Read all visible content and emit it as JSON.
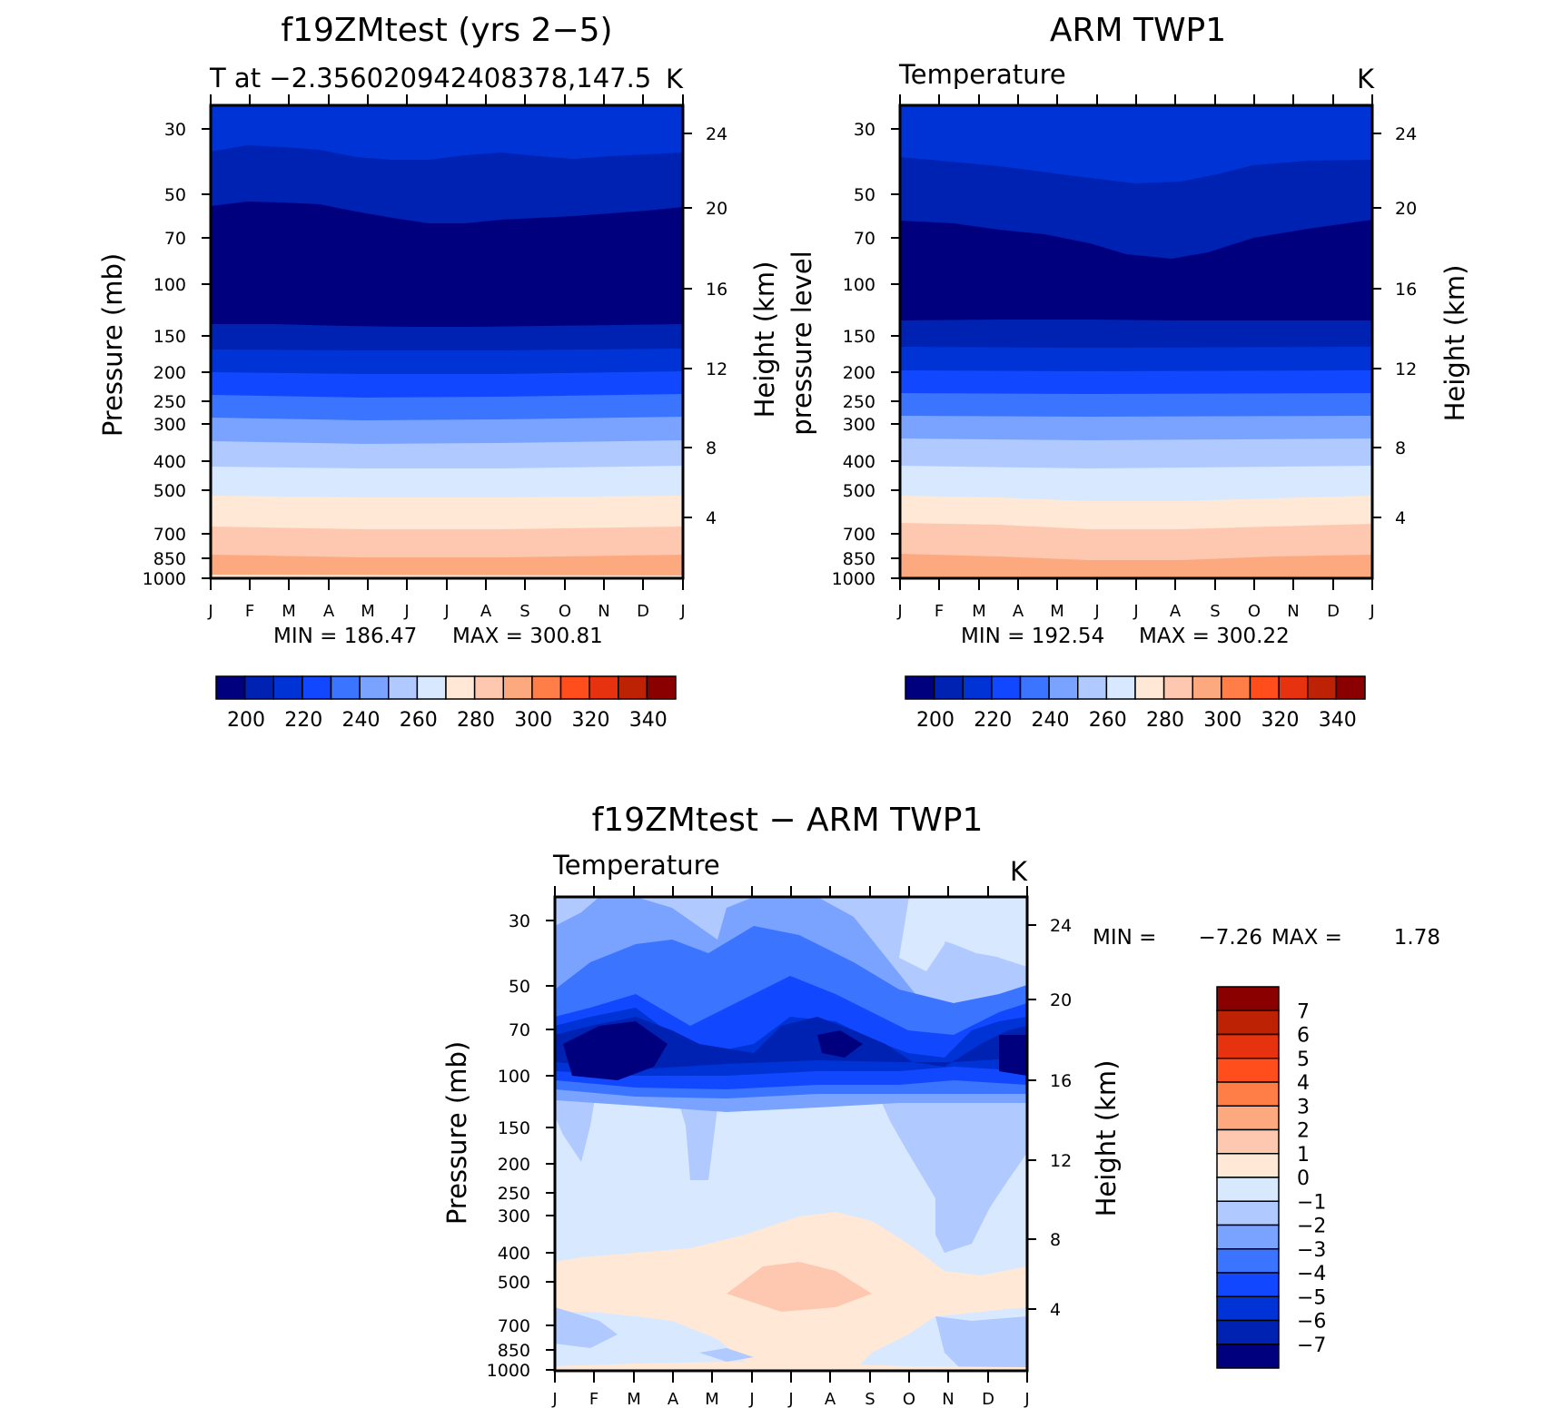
{
  "months": [
    "J",
    "F",
    "M",
    "A",
    "M",
    "J",
    "J",
    "A",
    "S",
    "O",
    "N",
    "D",
    "J"
  ],
  "pressure_ticks": [
    30,
    50,
    70,
    100,
    150,
    200,
    250,
    300,
    400,
    500,
    700,
    850,
    1000
  ],
  "colors": {
    "abs": [
      "#00007f",
      "#0022b2",
      "#0033d6",
      "#1148ff",
      "#3a74ff",
      "#7aa3ff",
      "#b0c9ff",
      "#d8e9ff",
      "#ffe9d6",
      "#fec8b0",
      "#fda97f",
      "#ff7e48",
      "#ff4d1c",
      "#e73210",
      "#bd2204",
      "#8a0000"
    ],
    "diff": [
      "#00007f",
      "#0022b2",
      "#0033d6",
      "#1148ff",
      "#3a74ff",
      "#7aa3ff",
      "#b0c9ff",
      "#d8e9ff",
      "#ffe9d6",
      "#fec8b0",
      "#fda97f",
      "#ff7e48",
      "#ff4d1c",
      "#e73210",
      "#bd2204",
      "#8a0000"
    ]
  },
  "chart_data": [
    {
      "type": "heatmap",
      "title": "f19ZMtest (yrs 2−5)",
      "subtitle_left": "T at −2.356020942408378,147.5",
      "units": "K",
      "ylabel": "Pressure (mb)",
      "ylabel_right": "Height (km)",
      "x": [
        "J",
        "F",
        "M",
        "A",
        "M",
        "J",
        "J",
        "A",
        "S",
        "O",
        "N",
        "D",
        "J"
      ],
      "y_pressure": [
        30,
        50,
        70,
        100,
        150,
        200,
        250,
        300,
        400,
        500,
        700,
        850,
        1000
      ],
      "height_ticks": [
        24,
        20,
        16,
        12,
        8,
        4
      ],
      "min_label": "MIN = 186.47",
      "max_label": "MAX = 300.81",
      "min": 186.47,
      "max": 300.81,
      "colorbar_labels": [
        "200",
        "220",
        "240",
        "260",
        "280",
        "300",
        "320",
        "340"
      ]
    },
    {
      "type": "heatmap",
      "title": "ARM TWP1",
      "subtitle_left": "Temperature",
      "units": "K",
      "ylabel": "pressure level",
      "ylabel_right": "Height (km)",
      "x": [
        "J",
        "F",
        "M",
        "A",
        "M",
        "J",
        "J",
        "A",
        "S",
        "O",
        "N",
        "D",
        "J"
      ],
      "y_pressure": [
        30,
        50,
        70,
        100,
        150,
        200,
        250,
        300,
        400,
        500,
        700,
        850,
        1000
      ],
      "height_ticks": [
        24,
        20,
        16,
        12,
        8,
        4
      ],
      "min_label": "MIN = 192.54",
      "max_label": "MAX = 300.22",
      "min": 192.54,
      "max": 300.22,
      "colorbar_labels": [
        "200",
        "220",
        "240",
        "260",
        "280",
        "300",
        "320",
        "340"
      ]
    },
    {
      "type": "heatmap",
      "title": "f19ZMtest − ARM TWP1",
      "subtitle_left": "Temperature",
      "units": "K",
      "ylabel": "Pressure (mb)",
      "ylabel_right": "Height (km)",
      "x": [
        "J",
        "F",
        "M",
        "A",
        "M",
        "J",
        "J",
        "A",
        "S",
        "O",
        "N",
        "D",
        "J"
      ],
      "y_pressure": [
        30,
        50,
        70,
        100,
        150,
        200,
        250,
        300,
        400,
        500,
        700,
        850,
        1000
      ],
      "height_ticks": [
        24,
        20,
        16,
        12,
        8,
        4
      ],
      "min_label": "MIN =",
      "min_value": "−7.26",
      "max_label": "MAX =",
      "max_value": "1.78",
      "min": -7.26,
      "max": 1.78,
      "colorbar_labels": [
        "7",
        "6",
        "5",
        "4",
        "3",
        "2",
        "1",
        "0",
        "−1",
        "−2",
        "−3",
        "−4",
        "−5",
        "−6",
        "−7"
      ]
    }
  ]
}
